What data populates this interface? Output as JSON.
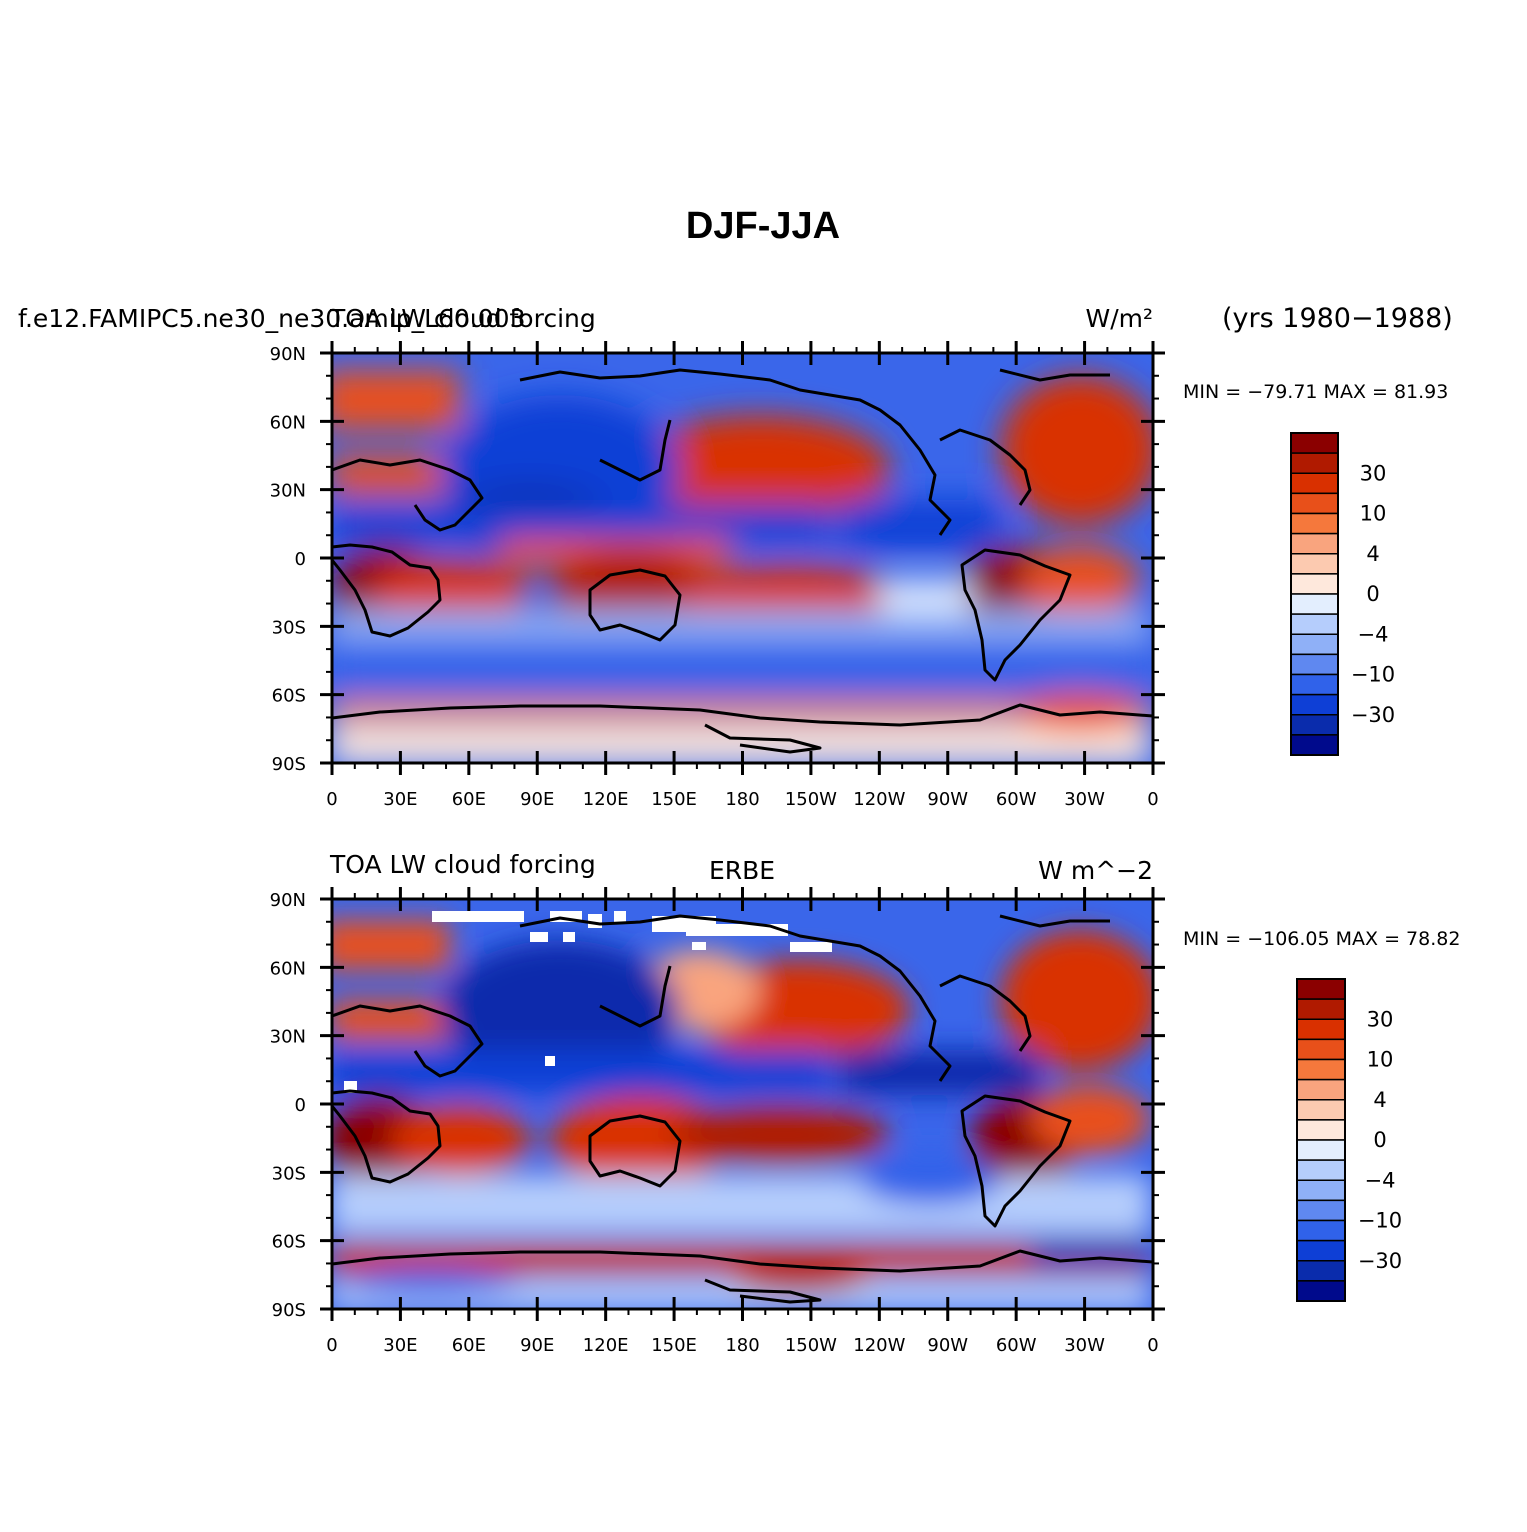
{
  "figure": {
    "title": "DJF-JJA"
  },
  "panels": [
    {
      "id": "model",
      "left_text": "f.e12.FAMIPC5.ne30_ne30.amip_L60.003",
      "left_text_overlay": "TOA LW cloud forcing",
      "center_text": "",
      "right_text": "W/m²",
      "extra_text": "(yrs 1980−1988)",
      "minmax_text": "MIN = −79.71  MAX =  81.93"
    },
    {
      "id": "obs",
      "left_text": "TOA LW cloud forcing",
      "center_text": "ERBE",
      "right_text": "W m^−2",
      "minmax_text": "MIN = −106.05  MAX =  78.82"
    }
  ],
  "axes": {
    "lat_ticks": [
      "90N",
      "60N",
      "30N",
      "0",
      "30S",
      "60S",
      "90S"
    ],
    "lon_ticks": [
      "0",
      "30E",
      "60E",
      "90E",
      "120E",
      "150E",
      "180",
      "150W",
      "120W",
      "90W",
      "60W",
      "30W",
      "0"
    ]
  },
  "colorbar": {
    "colors": [
      "#8b0000",
      "#b01a00",
      "#d93000",
      "#e8501a",
      "#f5783c",
      "#f9a47e",
      "#fccab0",
      "#fee8dc",
      "#e3eefe",
      "#b5cdfc",
      "#8fb0f7",
      "#5f88f0",
      "#3062ea",
      "#0e3fd6",
      "#0a2cac",
      "#000a8c"
    ],
    "labels": [
      "30",
      "10",
      "4",
      "0",
      "−4",
      "−10",
      "−30"
    ]
  },
  "chart_data": [
    {
      "type": "heatmap",
      "title": "TOA LW cloud forcing",
      "units": "W/m²",
      "x_range": [
        0,
        360
      ],
      "y_range": [
        -90,
        90
      ],
      "min": -79.71,
      "max": 81.93,
      "contour_levels": [
        -45,
        -30,
        -20,
        -15,
        -10,
        -6,
        -4,
        -2,
        0,
        2,
        4,
        6,
        10,
        15,
        20,
        30,
        45
      ]
    },
    {
      "type": "heatmap",
      "title": "ERBE",
      "units": "W m^−2",
      "x_range": [
        0,
        360
      ],
      "y_range": [
        -90,
        90
      ],
      "min": -106.05,
      "max": 78.82,
      "contour_levels": [
        -45,
        -30,
        -20,
        -15,
        -10,
        -6,
        -4,
        -2,
        0,
        2,
        4,
        6,
        10,
        15,
        20,
        30,
        45
      ]
    }
  ]
}
